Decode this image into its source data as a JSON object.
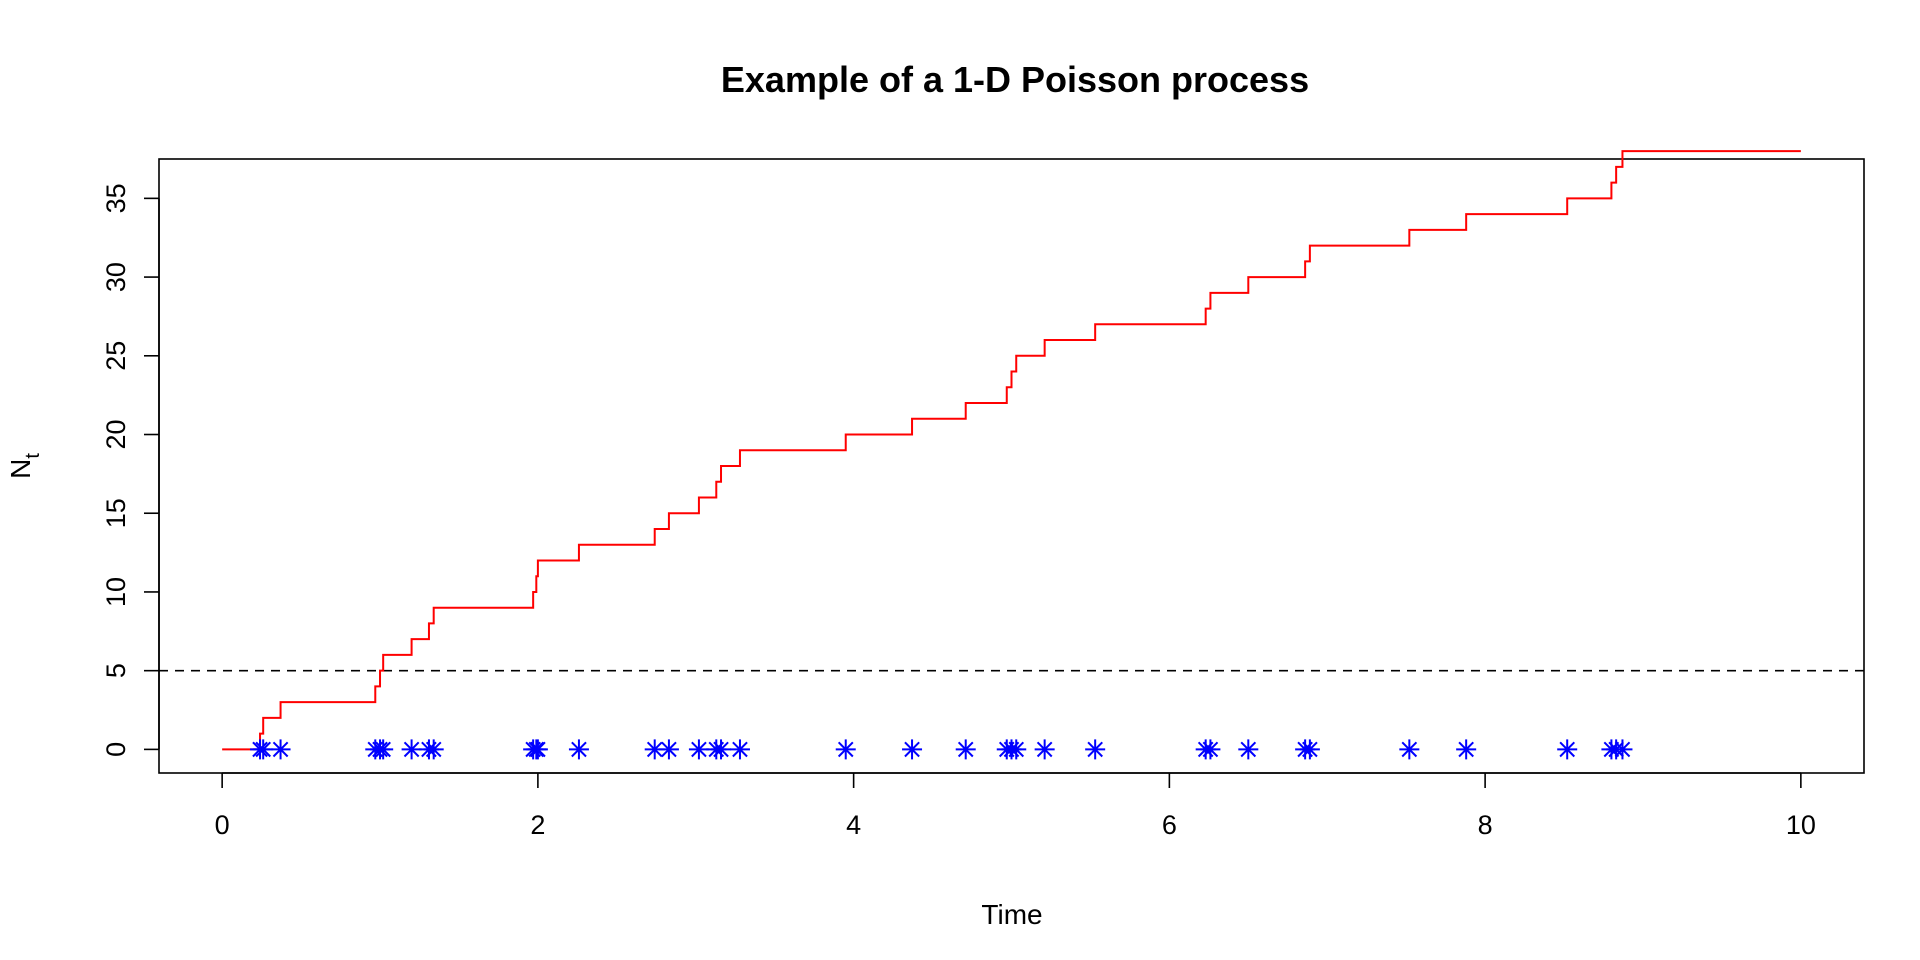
{
  "chart_data": {
    "type": "line",
    "title": "Example of a 1-D Poisson process",
    "xlabel": "Time",
    "ylabel_main": "N",
    "ylabel_sub": "t",
    "xlim": [
      -0.4,
      10.4
    ],
    "ylim": [
      -1.5,
      37.5
    ],
    "x_ticks": [
      "0",
      "2",
      "4",
      "6",
      "8",
      "10"
    ],
    "y_ticks": [
      "0",
      "5",
      "10",
      "15",
      "20",
      "25",
      "30",
      "35"
    ],
    "grid": false,
    "reference_line": {
      "y": 5,
      "style": "dashed",
      "color": "#000000"
    },
    "colors": {
      "step_line": "#ff0000",
      "event_markers": "#0000ff"
    },
    "series": [
      {
        "kind": "step",
        "end_time": 10,
        "event_times": [
          0.24,
          0.26,
          0.37,
          0.97,
          1.0,
          1.02,
          1.2,
          1.31,
          1.34,
          1.97,
          1.99,
          2.0,
          2.26,
          2.74,
          2.83,
          3.02,
          3.13,
          3.16,
          3.28,
          3.95,
          4.37,
          4.71,
          4.97,
          5.0,
          5.03,
          5.21,
          5.53,
          6.23,
          6.26,
          6.5,
          6.86,
          6.89,
          7.52,
          7.88,
          8.52,
          8.8,
          8.83,
          8.87
        ]
      },
      {
        "kind": "events",
        "y": 0,
        "event_times": [
          0.24,
          0.26,
          0.37,
          0.97,
          1.0,
          1.02,
          1.2,
          1.31,
          1.34,
          1.97,
          1.99,
          2.0,
          2.26,
          2.74,
          2.83,
          3.02,
          3.13,
          3.16,
          3.28,
          3.95,
          4.37,
          4.71,
          4.97,
          5.0,
          5.03,
          5.21,
          5.53,
          6.23,
          6.26,
          6.5,
          6.86,
          6.89,
          7.52,
          7.88,
          8.52,
          8.8,
          8.83,
          8.87
        ]
      }
    ]
  }
}
